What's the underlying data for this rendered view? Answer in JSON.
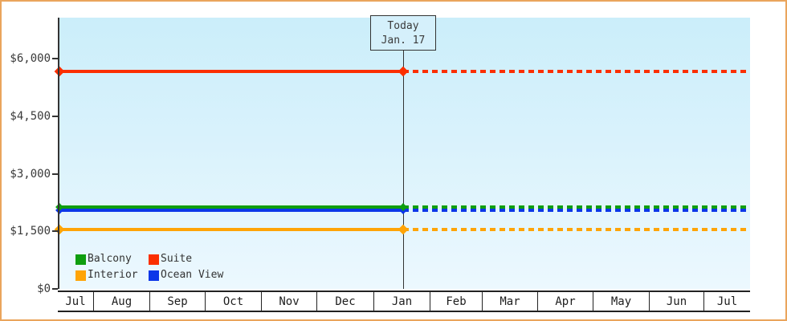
{
  "today_box": {
    "line1": "Today",
    "line2": "Jan. 17"
  },
  "y_axis": {
    "labels": [
      "$6,000",
      "$4,500",
      "$3,000",
      "$1,500",
      "$0"
    ]
  },
  "x_axis": {
    "months": [
      "Jul",
      "Aug",
      "Sep",
      "Oct",
      "Nov",
      "Dec",
      "Jan",
      "Feb",
      "Mar",
      "Apr",
      "May",
      "Jun",
      "Jul"
    ]
  },
  "legend": [
    {
      "label": "Balcony",
      "color": "#0f9e0f"
    },
    {
      "label": "Suite",
      "color": "#fb2f00"
    },
    {
      "label": "Interior",
      "color": "#ffa407"
    },
    {
      "label": "Ocean View",
      "color": "#0c36e8"
    }
  ],
  "colors": {
    "frame_border": "#eaa55c",
    "axis": "#333333",
    "plot_gradient_top": "#cbeefa",
    "plot_gradient_bottom": "#ecf8fe",
    "today_box_fill": "#d5f0fb"
  },
  "chart_data": {
    "type": "line",
    "title": "",
    "xlabel": "",
    "ylabel": "",
    "x_categories": [
      "Jul",
      "Aug",
      "Sep",
      "Oct",
      "Nov",
      "Dec",
      "Jan",
      "Feb",
      "Mar",
      "Apr",
      "May",
      "Jun",
      "Jul"
    ],
    "ylim": [
      0,
      6300
    ],
    "yticks": [
      0,
      1500,
      3000,
      4500,
      6000
    ],
    "ytick_labels": [
      "$0",
      "$1,500",
      "$3,000",
      "$4,500",
      "$6,000"
    ],
    "grid": false,
    "legend_position": "bottom-left-inside",
    "today": {
      "label": "Today",
      "date": "Jan. 17"
    },
    "series": [
      {
        "name": "Suite",
        "color": "#fb2f00",
        "value": 5670
      },
      {
        "name": "Balcony",
        "color": "#0f9e0f",
        "value": 2130
      },
      {
        "name": "Ocean View",
        "color": "#0c36e8",
        "value": 2050
      },
      {
        "name": "Interior",
        "color": "#ffa407",
        "value": 1540
      }
    ],
    "style_note": "Flat horizontal price lines across all months; solid segment before today (Jan. 17), dotted segment after; diamond markers at series start (left axis) and at the today line."
  }
}
